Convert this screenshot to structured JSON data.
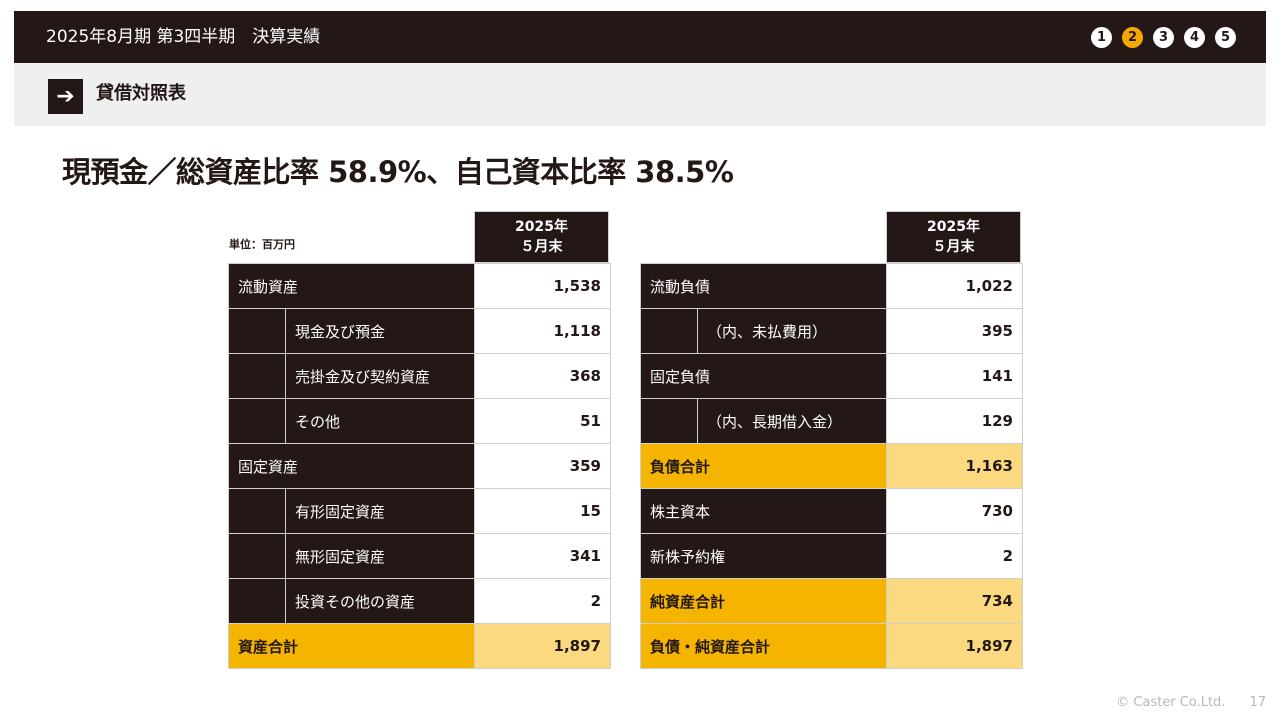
{
  "header": {
    "title": "2025年8月期 第3四半期　決算実績",
    "steps": [
      "1",
      "2",
      "3",
      "4",
      "5"
    ],
    "active_step": 2
  },
  "section": {
    "title": "貸借対照表"
  },
  "headline": "現預金／総資産比率 58.9%、自己資本比率 38.5%",
  "unit": "単位：百万円",
  "column_header": {
    "line1": "2025年",
    "line2": "５月末"
  },
  "assets": [
    {
      "label": "流動資産",
      "value": "1,538",
      "indent": false,
      "total": false
    },
    {
      "label": "現金及び預金",
      "value": "1,118",
      "indent": true,
      "total": false
    },
    {
      "label": "売掛金及び契約資産",
      "value": "368",
      "indent": true,
      "total": false
    },
    {
      "label": "その他",
      "value": "51",
      "indent": true,
      "total": false
    },
    {
      "label": "固定資産",
      "value": "359",
      "indent": false,
      "total": false
    },
    {
      "label": "有形固定資産",
      "value": "15",
      "indent": true,
      "total": false
    },
    {
      "label": "無形固定資産",
      "value": "341",
      "indent": true,
      "total": false
    },
    {
      "label": "投資その他の資産",
      "value": "2",
      "indent": true,
      "total": false
    },
    {
      "label": "資産合計",
      "value": "1,897",
      "indent": false,
      "total": true
    }
  ],
  "liabilities": [
    {
      "label": "流動負債",
      "value": "1,022",
      "indent": false,
      "total": false
    },
    {
      "label": "（内、未払費用）",
      "value": "395",
      "indent": true,
      "total": false
    },
    {
      "label": "固定負債",
      "value": "141",
      "indent": false,
      "total": false
    },
    {
      "label": "（内、長期借入金）",
      "value": "129",
      "indent": true,
      "total": false
    },
    {
      "label": "負債合計",
      "value": "1,163",
      "indent": false,
      "total": true
    },
    {
      "label": "株主資本",
      "value": "730",
      "indent": false,
      "total": false
    },
    {
      "label": "新株予約権",
      "value": "2",
      "indent": false,
      "total": false
    },
    {
      "label": "純資産合計",
      "value": "734",
      "indent": false,
      "total": true
    },
    {
      "label": "負債・純資産合計",
      "value": "1,897",
      "indent": false,
      "total": true
    }
  ],
  "footer": {
    "copyright": "© Caster Co.Ltd.",
    "page": "17"
  },
  "colors": {
    "dark": "#231815",
    "accent": "#f5b400",
    "accent_light": "#fad980",
    "active_step": "#f5a800"
  }
}
